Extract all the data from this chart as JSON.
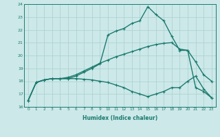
{
  "xlabel": "Humidex (Indice chaleur)",
  "bg_color": "#cce8e8",
  "line_color": "#1a7a6e",
  "grid_color": "#aacfcf",
  "x_values": [
    0,
    1,
    2,
    3,
    4,
    5,
    6,
    7,
    8,
    9,
    10,
    11,
    12,
    13,
    14,
    15,
    16,
    17,
    18,
    19,
    20,
    21,
    22,
    23
  ],
  "curve_max": [
    16.5,
    17.9,
    18.1,
    18.2,
    18.2,
    18.2,
    18.4,
    18.7,
    19.0,
    19.35,
    21.6,
    21.9,
    22.1,
    22.5,
    22.7,
    23.8,
    23.2,
    22.7,
    21.5,
    20.4,
    20.4,
    17.5,
    17.2,
    16.7
  ],
  "curve_mean": [
    16.5,
    17.9,
    18.1,
    18.2,
    18.2,
    18.3,
    18.5,
    18.8,
    19.1,
    19.4,
    19.65,
    19.9,
    20.1,
    20.3,
    20.5,
    20.7,
    20.85,
    20.95,
    21.0,
    20.5,
    20.4,
    19.5,
    18.5,
    18.0
  ],
  "curve_min": [
    16.5,
    17.9,
    18.1,
    18.2,
    18.2,
    18.2,
    18.2,
    18.15,
    18.1,
    18.0,
    17.9,
    17.7,
    17.5,
    17.2,
    17.0,
    16.8,
    17.0,
    17.2,
    17.5,
    17.5,
    18.0,
    18.4,
    17.4,
    16.7
  ],
  "ylim": [
    16,
    24
  ],
  "xlim_min": -0.5,
  "xlim_max": 23.5,
  "yticks": [
    16,
    17,
    18,
    19,
    20,
    21,
    22,
    23,
    24
  ],
  "xtick_fontsize": 4.2,
  "ytick_fontsize": 4.5,
  "xlabel_fontsize": 5.5,
  "linewidth": 1.0,
  "marker_size": 3.0
}
